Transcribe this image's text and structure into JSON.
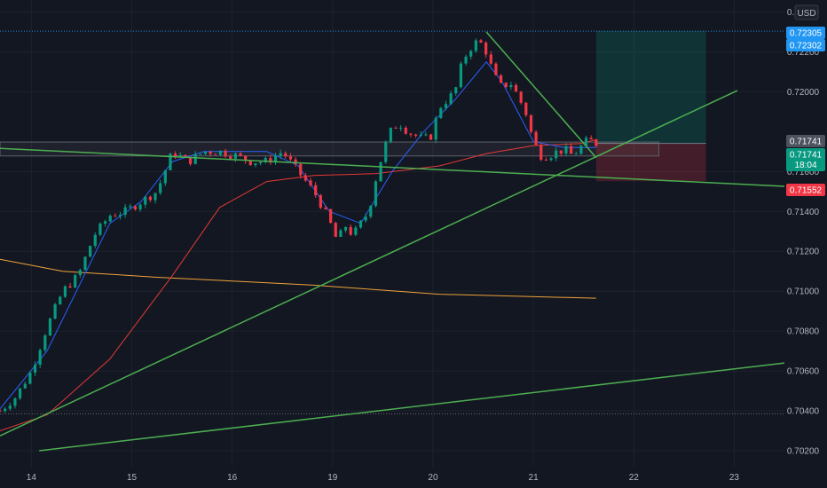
{
  "chart_data": {
    "type": "candlestick",
    "currency": "USD",
    "x_tick_labels": [
      "14",
      "15",
      "16",
      "19",
      "20",
      "21",
      "22",
      "23"
    ],
    "y_tick_labels": [
      "0.72400",
      "0.72200",
      "0.72000",
      "0.71600",
      "0.71400",
      "0.71200",
      "0.71000",
      "0.70800",
      "0.70600",
      "0.70400",
      "0.70200"
    ],
    "ylim": [
      0.7012,
      0.7246
    ],
    "xlim": [
      0,
      100
    ],
    "price_badges": [
      {
        "label": "0.72305",
        "value": 0.72305,
        "color": "#2196f3"
      },
      {
        "label": "0.72302",
        "value": 0.72302,
        "color": "#2196f3"
      },
      {
        "label": "0.71741",
        "value": 0.71741,
        "color": "#4c525e"
      },
      {
        "label": "0.71741",
        "value": 0.71741,
        "color": "#089981",
        "sublabel": "18:04"
      },
      {
        "label": "0.71552",
        "value": 0.71552,
        "color": "#f23645"
      }
    ],
    "horizontal_lines": [
      {
        "value": 0.72304,
        "style": "dotted",
        "color": "#2196f3"
      },
      {
        "value": 0.70385,
        "style": "dotted",
        "color": "#787b86"
      }
    ],
    "trendlines": [
      {
        "from": [
          0,
          0.71716
        ],
        "to": [
          100,
          0.71526
        ],
        "color": "#4caf50"
      },
      {
        "from": [
          0,
          0.70275
        ],
        "to": [
          94,
          0.72006
        ],
        "color": "#4caf50"
      },
      {
        "from": [
          5,
          0.702
        ],
        "to": [
          100,
          0.7064
        ],
        "color": "#4caf50"
      },
      {
        "from": [
          62,
          0.723
        ],
        "to": [
          76,
          0.7167
        ],
        "color": "#4caf50"
      }
    ],
    "zone": {
      "value": 0.717,
      "x0": 0,
      "x1": 84,
      "top": 0.71748,
      "bottom": 0.71678
    },
    "position": {
      "x0": 76,
      "x1": 90,
      "entry": 0.71741,
      "target": 0.72305,
      "stop": 0.71552
    },
    "moving_averages": [
      {
        "color": "#f0a33a",
        "points": [
          [
            0,
            0.7116
          ],
          [
            8,
            0.711
          ],
          [
            20,
            0.7107
          ],
          [
            40,
            0.7103
          ],
          [
            56,
            0.70985
          ],
          [
            76,
            0.70965
          ]
        ]
      },
      {
        "color": "#e53935",
        "points": [
          [
            0,
            0.703
          ],
          [
            6,
            0.7038
          ],
          [
            14,
            0.7066
          ],
          [
            22,
            0.7108
          ],
          [
            28,
            0.7142
          ],
          [
            34,
            0.7155
          ],
          [
            40,
            0.7158
          ],
          [
            48,
            0.7159
          ],
          [
            56,
            0.71628
          ],
          [
            62,
            0.7169
          ],
          [
            68,
            0.7173
          ],
          [
            74,
            0.7174
          ],
          [
            76,
            0.7176
          ]
        ]
      },
      {
        "color": "#2962ff",
        "points": [
          [
            0,
            0.7041
          ],
          [
            6,
            0.707
          ],
          [
            10,
            0.7102
          ],
          [
            14,
            0.7134
          ],
          [
            18,
            0.7145
          ],
          [
            22,
            0.7165
          ],
          [
            26,
            0.717
          ],
          [
            30,
            0.717
          ],
          [
            34,
            0.717
          ],
          [
            38,
            0.7163
          ],
          [
            42,
            0.714
          ],
          [
            46,
            0.7134
          ],
          [
            50,
            0.716
          ],
          [
            54,
            0.718
          ],
          [
            58,
            0.7196
          ],
          [
            62,
            0.7215
          ],
          [
            64,
            0.7205
          ],
          [
            66,
            0.719
          ],
          [
            68,
            0.7175
          ],
          [
            72,
            0.7172
          ],
          [
            76,
            0.7172
          ]
        ]
      }
    ],
    "anchors": [
      [
        0,
        0.704
      ],
      [
        2,
        0.7047
      ],
      [
        4,
        0.706
      ],
      [
        6,
        0.7082
      ],
      [
        8,
        0.71
      ],
      [
        10,
        0.7108
      ],
      [
        12,
        0.7128
      ],
      [
        14,
        0.7138
      ],
      [
        16,
        0.714
      ],
      [
        18,
        0.7145
      ],
      [
        20,
        0.715
      ],
      [
        22,
        0.717
      ],
      [
        24,
        0.7165
      ],
      [
        26,
        0.717
      ],
      [
        28,
        0.717
      ],
      [
        30,
        0.7168
      ],
      [
        32,
        0.7165
      ],
      [
        34,
        0.7165
      ],
      [
        36,
        0.717
      ],
      [
        38,
        0.716
      ],
      [
        40,
        0.715
      ],
      [
        41,
        0.7143
      ],
      [
        42,
        0.7135
      ],
      [
        43,
        0.7125
      ],
      [
        44,
        0.7133
      ],
      [
        45,
        0.7128
      ],
      [
        47,
        0.714
      ],
      [
        48,
        0.7158
      ],
      [
        49,
        0.7172
      ],
      [
        50,
        0.7182
      ],
      [
        51,
        0.7184
      ],
      [
        52,
        0.718
      ],
      [
        53,
        0.7178
      ],
      [
        54,
        0.7176
      ],
      [
        55,
        0.7178
      ],
      [
        56,
        0.7192
      ],
      [
        58,
        0.72
      ],
      [
        59,
        0.7216
      ],
      [
        60,
        0.7222
      ],
      [
        61,
        0.7226
      ],
      [
        62,
        0.722
      ],
      [
        63,
        0.7208
      ],
      [
        64,
        0.7202
      ],
      [
        65,
        0.7205
      ],
      [
        66,
        0.7198
      ],
      [
        67,
        0.719
      ],
      [
        68,
        0.7175
      ],
      [
        69,
        0.7168
      ],
      [
        70,
        0.7168
      ],
      [
        71,
        0.717
      ],
      [
        72,
        0.7171
      ],
      [
        73,
        0.7168
      ],
      [
        74,
        0.7172
      ],
      [
        75,
        0.7176
      ],
      [
        76,
        0.7174
      ]
    ]
  }
}
